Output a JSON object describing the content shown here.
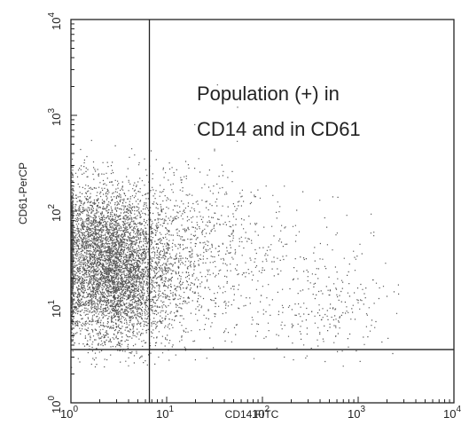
{
  "chart_data": {
    "type": "scatter",
    "title": "",
    "xlabel": "CD14 FITC",
    "ylabel": "CD61-PerCP",
    "xscale": "log",
    "yscale": "log",
    "xlim": [
      1,
      10000
    ],
    "ylim": [
      1,
      10000
    ],
    "grid": false,
    "x_ticks": [
      1,
      10,
      100,
      1000,
      10000
    ],
    "y_ticks": [
      1,
      10,
      100,
      1000,
      10000
    ],
    "x_tick_labels": [
      {
        "base": "10",
        "exp": "0"
      },
      {
        "base": "10",
        "exp": "1"
      },
      {
        "base": "10",
        "exp": "2"
      },
      {
        "base": "10",
        "exp": "3"
      },
      {
        "base": "10",
        "exp": "4"
      }
    ],
    "y_tick_labels": [
      {
        "base": "10",
        "exp": "0"
      },
      {
        "base": "10",
        "exp": "1"
      },
      {
        "base": "10",
        "exp": "2"
      },
      {
        "base": "10",
        "exp": "3"
      },
      {
        "base": "10",
        "exp": "4"
      }
    ],
    "gates": {
      "x": 6.6,
      "y": 3.6
    },
    "annotation": {
      "line1": "Population (+) in",
      "line2": "CD14 and in CD61"
    },
    "point_color": "#555555",
    "populations": [
      {
        "cx": 2.2,
        "cy": 45,
        "sx": 0.32,
        "sy": 0.33,
        "n": 11000
      },
      {
        "cx": 3.0,
        "cy": 15,
        "sx": 0.3,
        "sy": 0.3,
        "n": 2500
      },
      {
        "cx": 15,
        "cy": 40,
        "sx": 0.4,
        "sy": 0.45,
        "n": 700
      },
      {
        "cx": 70,
        "cy": 30,
        "sx": 0.55,
        "sy": 0.45,
        "n": 300
      },
      {
        "cx": 700,
        "cy": 12,
        "sx": 0.25,
        "sy": 0.25,
        "n": 130
      },
      {
        "cx": 300,
        "cy": 7,
        "sx": 0.35,
        "sy": 0.18,
        "n": 60
      }
    ]
  }
}
